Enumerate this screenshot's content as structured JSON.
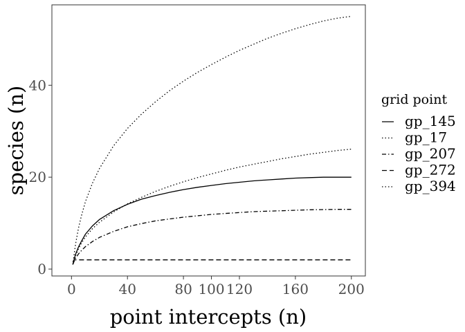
{
  "chart_data": {
    "type": "line",
    "xlabel": "point intercepts (n)",
    "ylabel": "species (n)",
    "xlim": [
      -14,
      210
    ],
    "ylim": [
      -1.5,
      57.5
    ],
    "x_ticks": [
      0,
      40,
      80,
      100,
      120,
      160,
      200
    ],
    "y_ticks": [
      0,
      20,
      40
    ],
    "grid": false,
    "legend": {
      "title": "grid point",
      "position": "right"
    },
    "x": [
      1,
      2,
      3,
      5,
      7,
      10,
      15,
      20,
      30,
      40,
      50,
      60,
      70,
      80,
      90,
      100,
      110,
      120,
      130,
      140,
      150,
      160,
      170,
      180,
      190,
      200
    ],
    "series": [
      {
        "name": "gp_145",
        "dash": "solid",
        "values": [
          1.0,
          2.3,
          3.3,
          4.8,
          6.0,
          7.6,
          9.4,
          10.8,
          12.7,
          14.1,
          15.2,
          16.0,
          16.7,
          17.3,
          17.8,
          18.2,
          18.6,
          18.9,
          19.2,
          19.4,
          19.6,
          19.8,
          19.9,
          20.0,
          20.0,
          20.0
        ]
      },
      {
        "name": "gp_17",
        "dash": "dotted",
        "values": [
          1.0,
          2.1,
          3.0,
          4.4,
          5.6,
          7.0,
          8.8,
          10.2,
          12.4,
          14.2,
          15.6,
          16.9,
          18.0,
          19.0,
          19.9,
          20.7,
          21.5,
          22.2,
          22.8,
          23.4,
          24.0,
          24.5,
          25.0,
          25.4,
          25.8,
          26.1
        ]
      },
      {
        "name": "gp_207",
        "dash": "dashdot",
        "values": [
          1.0,
          1.8,
          2.4,
          3.3,
          4.0,
          4.9,
          6.0,
          6.9,
          8.2,
          9.2,
          9.9,
          10.5,
          10.9,
          11.3,
          11.6,
          11.9,
          12.1,
          12.3,
          12.5,
          12.6,
          12.7,
          12.8,
          12.9,
          12.95,
          13.0,
          13.0
        ]
      },
      {
        "name": "gp_272",
        "dash": "dashed",
        "values": [
          1.5,
          2.0,
          2.0,
          2.0,
          2.0,
          2.0,
          2.0,
          2.0,
          2.0,
          2.0,
          2.0,
          2.0,
          2.0,
          2.0,
          2.0,
          2.0,
          2.0,
          2.0,
          2.0,
          2.0,
          2.0,
          2.0,
          2.0,
          2.0,
          2.0,
          2.0
        ]
      },
      {
        "name": "gp_394",
        "dash": "dotted",
        "values": [
          1.0,
          3.5,
          5.6,
          8.9,
          11.5,
          14.7,
          18.7,
          21.9,
          26.8,
          30.6,
          33.7,
          36.4,
          38.8,
          40.9,
          42.8,
          44.5,
          46.1,
          47.6,
          48.9,
          50.2,
          51.3,
          52.3,
          53.2,
          54.0,
          54.6,
          55.0
        ]
      }
    ]
  }
}
